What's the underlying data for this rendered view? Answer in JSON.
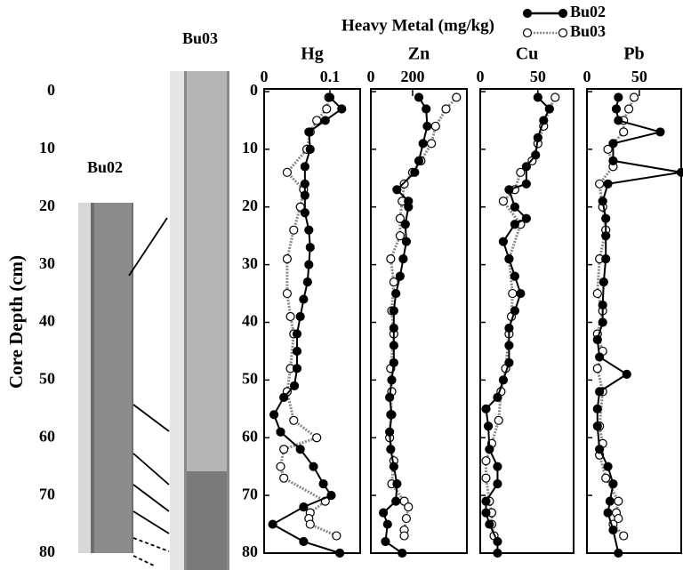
{
  "chart_data": {
    "type": "line",
    "title": "Heavy Metal (mg/kg)",
    "ylabel": "Core Depth (cm)",
    "ylim": [
      0,
      80
    ],
    "yticks": [
      0,
      10,
      20,
      30,
      40,
      50,
      60,
      70,
      80
    ],
    "core_labels": [
      "Bu02",
      "Bu03"
    ],
    "series": [
      {
        "name": "Bu02",
        "color": "#000000",
        "marker_fill": "#000000"
      },
      {
        "name": "Bu03",
        "color": "#888888",
        "marker_fill": "#ffffff"
      }
    ],
    "panels": [
      {
        "title": "Hg",
        "xlim": [
          0,
          0.146
        ],
        "xticks": [
          0,
          0.1
        ],
        "data": [
          {
            "depth": [
              1,
              3,
              5,
              7,
              10,
              13,
              16,
              18,
              21,
              24,
              27,
              30,
              33,
              36,
              39,
              42,
              45,
              48,
              51,
              53,
              56,
              59,
              62,
              65,
              68,
              70,
              72,
              75,
              78,
              80
            ],
            "values": [
              0.1,
              0.118,
              0.093,
              0.068,
              0.07,
              0.062,
              0.062,
              0.062,
              0.062,
              0.068,
              0.07,
              0.068,
              0.066,
              0.06,
              0.055,
              0.05,
              0.05,
              0.05,
              0.046,
              0.03,
              0.015,
              0.025,
              0.055,
              0.075,
              0.09,
              0.102,
              0.06,
              0.013,
              0.06,
              0.115
            ]
          },
          {
            "depth": [
              1,
              3,
              5,
              7,
              10,
              14,
              17,
              20,
              24,
              29,
              35,
              39,
              42,
              48,
              52,
              57,
              60,
              62,
              65,
              67,
              71,
              73,
              74,
              75,
              77
            ],
            "values": [
              0.098,
              0.095,
              0.08,
              0.07,
              0.065,
              0.035,
              0.06,
              0.055,
              0.045,
              0.035,
              0.035,
              0.04,
              0.045,
              0.04,
              0.035,
              0.045,
              0.08,
              0.03,
              0.025,
              0.03,
              0.093,
              0.07,
              0.068,
              0.07,
              0.11
            ]
          }
        ]
      },
      {
        "title": "Zn",
        "xlim": [
          0,
          460
        ],
        "xticks": [
          0,
          200
        ],
        "data": [
          {
            "depth": [
              1,
              3,
              6,
              9,
              12,
              14,
              17,
              19,
              20,
              23,
              26,
              29,
              32,
              35,
              38,
              41,
              44,
              47,
              50,
              53,
              56,
              59,
              62,
              65,
              68,
              71,
              73,
              75,
              78,
              80
            ],
            "values": [
              230,
              265,
              270,
              250,
              230,
              210,
              125,
              180,
              180,
              165,
              170,
              155,
              140,
              120,
              110,
              110,
              110,
              110,
              100,
              90,
              100,
              90,
              95,
              110,
              125,
              120,
              60,
              80,
              70,
              150
            ]
          },
          {
            "depth": [
              1,
              3,
              6,
              9,
              12,
              14,
              16,
              19,
              22,
              25,
              29,
              33,
              38,
              42,
              48,
              52,
              56,
              60,
              64,
              68,
              71,
              72,
              74,
              76,
              77
            ],
            "values": [
              410,
              360,
              310,
              290,
              240,
              200,
              160,
              150,
              140,
              140,
              95,
              110,
              100,
              110,
              95,
              100,
              95,
              90,
              110,
              100,
              160,
              180,
              170,
              160,
              160
            ]
          }
        ]
      },
      {
        "title": "Cu",
        "xlim": [
          0,
          81
        ],
        "xticks": [
          0,
          50
        ],
        "data": [
          {
            "depth": [
              1,
              3,
              5,
              8,
              11,
              13,
              16,
              17,
              20,
              22,
              23,
              26,
              29,
              32,
              35,
              38,
              41,
              44,
              47,
              50,
              53,
              55,
              58,
              62,
              65,
              68,
              71,
              73,
              75,
              78,
              80
            ],
            "values": [
              50,
              60,
              55,
              50,
              48,
              40,
              40,
              25,
              30,
              40,
              30,
              20,
              25,
              30,
              35,
              30,
              25,
              25,
              25,
              20,
              15,
              5,
              7,
              8,
              15,
              15,
              5,
              5,
              8,
              15,
              15
            ]
          },
          {
            "depth": [
              1,
              3,
              6,
              9,
              12,
              14,
              17,
              19,
              23,
              29,
              35,
              39,
              42,
              48,
              52,
              57,
              61,
              64,
              67,
              71,
              73,
              75,
              77
            ],
            "values": [
              65,
              60,
              55,
              50,
              45,
              35,
              30,
              20,
              35,
              25,
              28,
              27,
              25,
              22,
              18,
              16,
              10,
              5,
              5,
              8,
              10,
              10,
              12
            ]
          }
        ]
      },
      {
        "title": "Pb",
        "xlim": [
          0,
          90
        ],
        "xticks": [
          0,
          50
        ],
        "data": [
          {
            "depth": [
              1,
              3,
              5,
              7,
              9,
              12,
              14,
              16,
              19,
              22,
              25,
              29,
              33,
              37,
              40,
              43,
              46,
              49,
              52,
              55,
              58,
              62,
              65,
              68,
              71,
              73,
              76,
              80
            ],
            "values": [
              30,
              28,
              30,
              70,
              25,
              25,
              90,
              20,
              15,
              18,
              18,
              18,
              16,
              15,
              15,
              10,
              12,
              38,
              12,
              10,
              10,
              12,
              20,
              25,
              22,
              20,
              25,
              30
            ]
          },
          {
            "depth": [
              1,
              3,
              5,
              7,
              10,
              13,
              16,
              20,
              24,
              29,
              35,
              38,
              42,
              45,
              48,
              52,
              58,
              61,
              63,
              67,
              71,
              73,
              74,
              75,
              77
            ],
            "values": [
              45,
              40,
              35,
              35,
              20,
              25,
              12,
              15,
              18,
              12,
              10,
              15,
              10,
              15,
              10,
              15,
              12,
              15,
              12,
              18,
              30,
              28,
              30,
              25,
              35
            ]
          }
        ]
      }
    ]
  }
}
